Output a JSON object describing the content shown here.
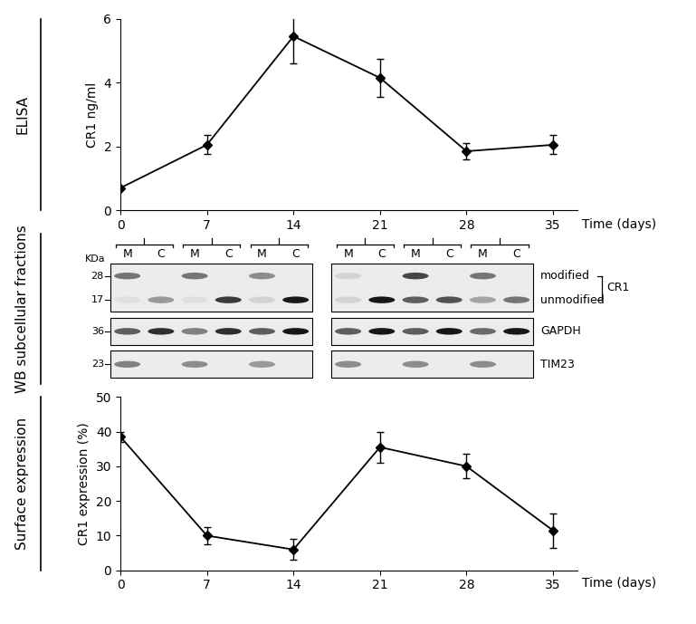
{
  "chart_data": [
    {
      "type": "line",
      "title": "ELISA",
      "ylabel": "CR1 ng/ml",
      "xlabel": "Time (days)",
      "x": [
        0,
        7,
        14,
        21,
        28,
        35
      ],
      "values": [
        0.7,
        2.05,
        5.45,
        4.15,
        1.85,
        2.05
      ],
      "errors": [
        0.05,
        0.3,
        0.85,
        0.6,
        0.25,
        0.3
      ],
      "color": "#000000",
      "marker": "D",
      "line_style": "solid",
      "xlim": [
        0,
        37
      ],
      "xticks": [
        0,
        7,
        14,
        21,
        28,
        35
      ],
      "ylim": [
        0,
        6
      ],
      "yticks": [
        0,
        2,
        4,
        6
      ],
      "grid": false
    },
    {
      "type": "line",
      "title": "Surface expression",
      "ylabel": "CR1 expression (%)",
      "xlabel": "Time (days)",
      "x": [
        0,
        7,
        14,
        21,
        28,
        35
      ],
      "values": [
        38.5,
        10,
        6,
        35.5,
        30,
        11.5
      ],
      "errors": [
        1.5,
        2.5,
        3,
        4.5,
        3.5,
        5
      ],
      "color": "#000000",
      "marker": "D",
      "line_style": "solid",
      "xlim": [
        0,
        37
      ],
      "xticks": [
        0,
        7,
        14,
        21,
        28,
        35
      ],
      "ylim": [
        0,
        50
      ],
      "yticks": [
        0,
        10,
        20,
        30,
        40,
        50
      ],
      "grid": false
    }
  ],
  "western_blot": {
    "title": "WB subcellular fractions",
    "unit": "KDa",
    "lanes": [
      "M",
      "C",
      "M",
      "C",
      "M",
      "C",
      "M",
      "C",
      "M",
      "C",
      "M",
      "C"
    ],
    "rows": [
      {
        "label": "CR1",
        "markers": [
          28,
          17
        ],
        "bands": [
          {
            "label": "modified",
            "intensity": [
              0.5,
              0,
              0.5,
              0,
              0.4,
              0,
              0.1,
              0,
              0.7,
              0,
              0.5,
              0
            ]
          },
          {
            "label": "unmodified",
            "intensity": [
              0.05,
              0.35,
              0.05,
              0.75,
              0.1,
              0.9,
              0.1,
              0.9,
              0.6,
              0.65,
              0.3,
              0.5
            ]
          }
        ]
      },
      {
        "label": "GAPDH",
        "markers": [
          36
        ],
        "bands": [
          {
            "intensity": [
              0.6,
              0.8,
              0.45,
              0.8,
              0.6,
              0.9,
              0.6,
              0.9,
              0.6,
              0.9,
              0.55,
              0.9
            ]
          }
        ]
      },
      {
        "label": "TIM23",
        "markers": [
          23
        ],
        "bands": [
          {
            "intensity": [
              0.45,
              0,
              0.4,
              0,
              0.35,
              0,
              0.4,
              0,
              0.4,
              0,
              0.4,
              0
            ]
          }
        ]
      }
    ]
  }
}
